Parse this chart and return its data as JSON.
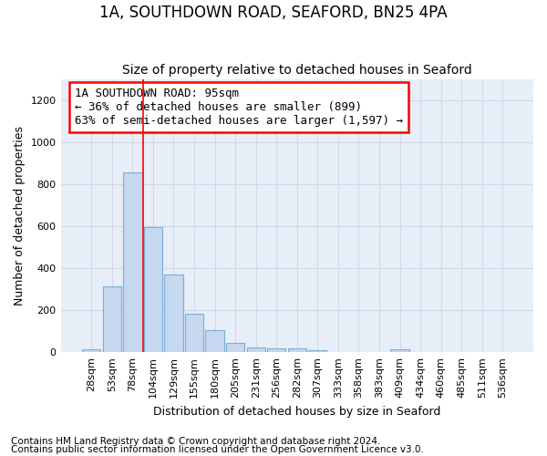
{
  "title": "1A, SOUTHDOWN ROAD, SEAFORD, BN25 4PA",
  "subtitle": "Size of property relative to detached houses in Seaford",
  "xlabel": "Distribution of detached houses by size in Seaford",
  "ylabel": "Number of detached properties",
  "bar_labels": [
    "28sqm",
    "53sqm",
    "78sqm",
    "104sqm",
    "129sqm",
    "155sqm",
    "180sqm",
    "205sqm",
    "231sqm",
    "256sqm",
    "282sqm",
    "307sqm",
    "333sqm",
    "358sqm",
    "383sqm",
    "409sqm",
    "434sqm",
    "460sqm",
    "485sqm",
    "511sqm",
    "536sqm"
  ],
  "bar_values": [
    15,
    315,
    855,
    598,
    370,
    183,
    105,
    46,
    22,
    18,
    20,
    10,
    0,
    0,
    0,
    12,
    0,
    0,
    0,
    0,
    0
  ],
  "bar_color": "#c5d8f0",
  "bar_edge_color": "#7aaed4",
  "ylim": [
    0,
    1300
  ],
  "yticks": [
    0,
    200,
    400,
    600,
    800,
    1000,
    1200
  ],
  "annotation_line1": "1A SOUTHDOWN ROAD: 95sqm",
  "annotation_line2": "← 36% of detached houses are smaller (899)",
  "annotation_line3": "63% of semi-detached houses are larger (1,597) →",
  "vline_x": 2.5,
  "footnote1": "Contains HM Land Registry data © Crown copyright and database right 2024.",
  "footnote2": "Contains public sector information licensed under the Open Government Licence v3.0.",
  "bg_color": "#e8eef8",
  "fig_bg_color": "#ffffff",
  "grid_color": "#d0d8e8",
  "title_fontsize": 12,
  "subtitle_fontsize": 10,
  "axis_label_fontsize": 9,
  "tick_fontsize": 8,
  "annotation_fontsize": 9,
  "footnote_fontsize": 7.5
}
